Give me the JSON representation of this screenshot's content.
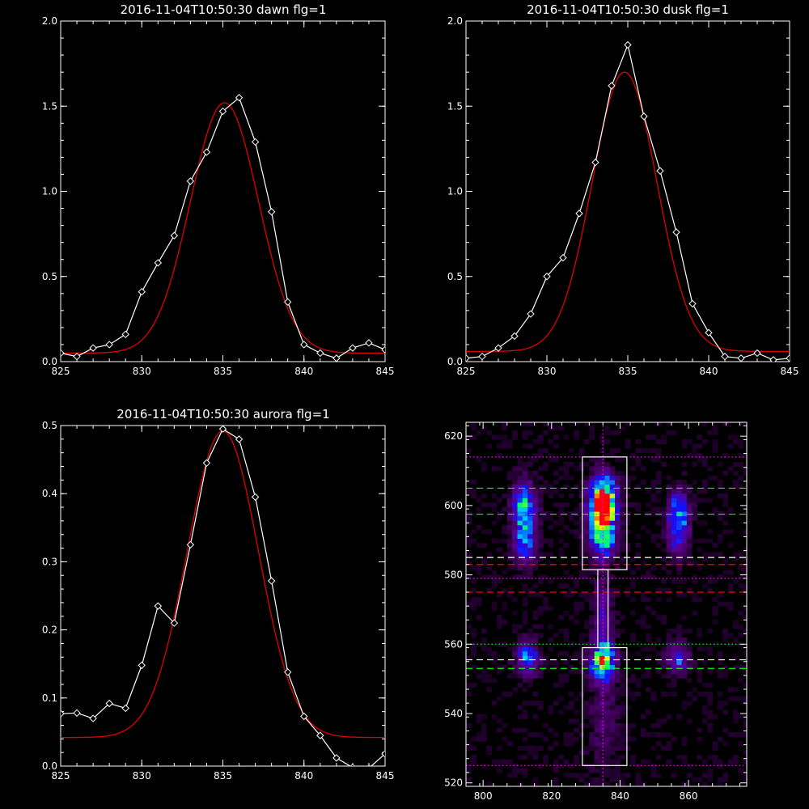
{
  "chart_data": [
    {
      "type": "line",
      "title": "2016-11-04T10:50:30 dawn flg=1",
      "xlim": [
        825,
        845
      ],
      "ylim": [
        0,
        2.0
      ],
      "x_ticks": [
        "825",
        "830",
        "835",
        "840",
        "845"
      ],
      "y_ticks": [
        "0.0",
        "0.5",
        "1.0",
        "1.5",
        "2.0"
      ],
      "series": [
        {
          "kind": "data",
          "color": "#ffffff",
          "marker": "diamond",
          "x": [
            825,
            826,
            827,
            828,
            829,
            830,
            831,
            832,
            833,
            834,
            835,
            836,
            837,
            838,
            839,
            840,
            841,
            842,
            843,
            844,
            845
          ],
          "y": [
            0.05,
            0.03,
            0.08,
            0.1,
            0.16,
            0.41,
            0.58,
            0.74,
            1.06,
            1.23,
            1.47,
            1.55,
            1.29,
            0.88,
            0.35,
            0.1,
            0.05,
            0.02,
            0.08,
            0.11,
            0.07
          ]
        },
        {
          "kind": "gaussian-fit",
          "color": "#e00000",
          "amplitude": 1.47,
          "center": 835.1,
          "sigma": 2.1,
          "baseline": 0.05
        }
      ]
    },
    {
      "type": "line",
      "title": "2016-11-04T10:50:30 dusk flg=1",
      "xlim": [
        825,
        845
      ],
      "ylim": [
        0,
        2.0
      ],
      "x_ticks": [
        "825",
        "830",
        "835",
        "840",
        "845"
      ],
      "y_ticks": [
        "0.0",
        "0.5",
        "1.0",
        "1.5",
        "2.0"
      ],
      "series": [
        {
          "kind": "data",
          "color": "#ffffff",
          "marker": "diamond",
          "x": [
            825,
            826,
            827,
            828,
            829,
            830,
            831,
            832,
            833,
            834,
            835,
            836,
            837,
            838,
            839,
            840,
            841,
            842,
            843,
            844,
            845
          ],
          "y": [
            0.02,
            0.03,
            0.08,
            0.15,
            0.28,
            0.5,
            0.61,
            0.87,
            1.17,
            1.62,
            1.86,
            1.44,
            1.12,
            0.76,
            0.34,
            0.17,
            0.03,
            0.02,
            0.05,
            0.01,
            0.02
          ]
        },
        {
          "kind": "gaussian-fit",
          "color": "#e00000",
          "amplitude": 1.64,
          "center": 834.8,
          "sigma": 2.0,
          "baseline": 0.06
        }
      ]
    },
    {
      "type": "line",
      "title": "2016-11-04T10:50:30 aurora flg=1",
      "xlim": [
        825,
        845
      ],
      "ylim": [
        0,
        0.5
      ],
      "x_ticks": [
        "825",
        "830",
        "835",
        "840",
        "845"
      ],
      "y_ticks": [
        "0.0",
        "0.1",
        "0.2",
        "0.3",
        "0.4",
        "0.5"
      ],
      "series": [
        {
          "kind": "data",
          "color": "#ffffff",
          "marker": "diamond",
          "x": [
            825,
            826,
            827,
            828,
            829,
            830,
            831,
            832,
            833,
            834,
            835,
            836,
            837,
            838,
            839,
            840,
            841,
            842,
            843,
            844,
            845
          ],
          "y": [
            0.077,
            0.078,
            0.07,
            0.092,
            0.085,
            0.148,
            0.235,
            0.21,
            0.325,
            0.445,
            0.495,
            0.48,
            0.395,
            0.272,
            0.138,
            0.073,
            0.045,
            0.012,
            -0.002,
            -0.003,
            0.018
          ]
        },
        {
          "kind": "gaussian-fit",
          "color": "#e00000",
          "amplitude": 0.45,
          "center": 835.0,
          "sigma": 2.2,
          "baseline": 0.042
        }
      ]
    },
    {
      "type": "heatmap",
      "title": "",
      "xlim": [
        795,
        877
      ],
      "ylim": [
        519,
        624
      ],
      "x_ticks": [
        "800",
        "820",
        "840",
        "860"
      ],
      "y_ticks": [
        "520",
        "540",
        "560",
        "580",
        "600",
        "620"
      ],
      "colormap": [
        "#000000",
        "#3a0050",
        "#5a0090",
        "#1010ff",
        "#00c0ff",
        "#00ff60",
        "#ffff00",
        "#ff0000"
      ],
      "blobs": [
        {
          "x": 812,
          "y": 599,
          "sx": 2.4,
          "sy": 5.5,
          "amp": 0.62
        },
        {
          "x": 812,
          "y": 588,
          "sx": 2.2,
          "sy": 4.0,
          "amp": 0.38
        },
        {
          "x": 835,
          "y": 604,
          "sx": 2.8,
          "sy": 4.0,
          "amp": 0.72
        },
        {
          "x": 835,
          "y": 598.5,
          "sx": 2.5,
          "sy": 3.0,
          "amp": 0.88
        },
        {
          "x": 835,
          "y": 591,
          "sx": 2.8,
          "sy": 4.2,
          "amp": 0.68
        },
        {
          "x": 835,
          "y": 569,
          "sx": 1.8,
          "sy": 8.0,
          "amp": 0.3
        },
        {
          "x": 835,
          "y": 555,
          "sx": 2.5,
          "sy": 4.0,
          "amp": 0.74
        },
        {
          "x": 857,
          "y": 598,
          "sx": 2.2,
          "sy": 4.5,
          "amp": 0.5
        },
        {
          "x": 857,
          "y": 590,
          "sx": 2.2,
          "sy": 4.0,
          "amp": 0.3
        },
        {
          "x": 813,
          "y": 556,
          "sx": 2.3,
          "sy": 3.5,
          "amp": 0.5
        },
        {
          "x": 857,
          "y": 556,
          "sx": 2.3,
          "sy": 3.0,
          "amp": 0.4
        },
        {
          "x": 835,
          "y": 538,
          "sx": 3.0,
          "sy": 10.0,
          "amp": 0.16
        }
      ],
      "boxes": [
        {
          "x1": 829,
          "x2": 842,
          "y1": 581.5,
          "y2": 614,
          "color": "#ffffff"
        },
        {
          "x1": 829,
          "x2": 842,
          "y1": 525,
          "y2": 559,
          "color": "#ffffff"
        },
        {
          "x1": 833.5,
          "x2": 836.5,
          "y1": 559,
          "y2": 581.5,
          "color": "#ffffff"
        }
      ],
      "hlines": [
        {
          "y": 614,
          "color": "#ff00ff",
          "style": "dotted"
        },
        {
          "y": 605,
          "color": "#00ff00",
          "style": "dashed"
        },
        {
          "y": 597.5,
          "color": "#00ff00",
          "style": "dashed"
        },
        {
          "y": 585,
          "color": "#ffffff",
          "style": "dashed"
        },
        {
          "y": 583,
          "color": "#ff0000",
          "style": "dashed"
        },
        {
          "y": 579,
          "color": "#ff00ff",
          "style": "dotted"
        },
        {
          "y": 575,
          "color": "#ff0000",
          "style": "dashed"
        },
        {
          "y": 560,
          "color": "#00ff00",
          "style": "dotted"
        },
        {
          "y": 555.5,
          "color": "#ffffff",
          "style": "dashed"
        },
        {
          "y": 553,
          "color": "#00ff00",
          "style": "dashed"
        },
        {
          "y": 525,
          "color": "#ff00ff",
          "style": "dotted"
        }
      ],
      "vlines": [
        {
          "x": 835,
          "color": "#ff00ff",
          "style": "dotted"
        }
      ]
    }
  ]
}
